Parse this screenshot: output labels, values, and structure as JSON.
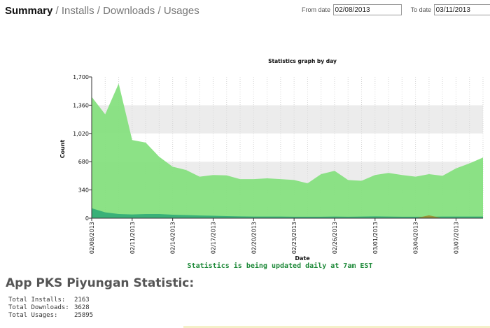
{
  "nav": {
    "summary": "Summary",
    "separator": " / ",
    "installs": "Installs",
    "downloads": "Downloads",
    "usages": "Usages"
  },
  "filters": {
    "from_label": "From date",
    "from_value": "02/08/2013",
    "to_label": "To date",
    "to_value": "03/11/2013"
  },
  "chart_data": {
    "type": "area",
    "title": "Statistics graph by day",
    "xlabel": "Date",
    "ylabel": "Count",
    "ylim": [
      0,
      1700
    ],
    "yticks": [
      0,
      340,
      680,
      1020,
      1360,
      1700
    ],
    "ytick_labels": [
      "0",
      "340",
      "680",
      "1,020",
      "1,360",
      "1,700"
    ],
    "x": [
      "02/08/2013",
      "02/09/2013",
      "02/10/2013",
      "02/11/2013",
      "02/12/2013",
      "02/13/2013",
      "02/14/2013",
      "02/15/2013",
      "02/16/2013",
      "02/17/2013",
      "02/18/2013",
      "02/19/2013",
      "02/20/2013",
      "02/21/2013",
      "02/22/2013",
      "02/23/2013",
      "02/24/2013",
      "02/25/2013",
      "02/26/2013",
      "02/27/2013",
      "02/28/2013",
      "03/01/2013",
      "03/02/2013",
      "03/03/2013",
      "03/04/2013",
      "03/05/2013",
      "03/06/2013",
      "03/07/2013",
      "03/08/2013",
      "03/09/2013"
    ],
    "x_tick_labels": [
      "02/08/2013",
      "02/11/2013",
      "02/14/2013",
      "02/17/2013",
      "02/20/2013",
      "02/23/2013",
      "02/26/2013",
      "03/01/2013",
      "03/04/2013",
      "03/07/2013"
    ],
    "series": [
      {
        "name": "",
        "color": "#86e07f",
        "values": [
          1460,
          1250,
          1620,
          940,
          910,
          740,
          620,
          580,
          500,
          520,
          515,
          470,
          470,
          480,
          470,
          460,
          420,
          530,
          570,
          460,
          450,
          520,
          545,
          520,
          500,
          530,
          510,
          600,
          660,
          730
        ]
      },
      {
        "name": "",
        "color": "#2aa876",
        "values": [
          120,
          70,
          50,
          45,
          50,
          50,
          42,
          38,
          33,
          30,
          25,
          22,
          20,
          20,
          20,
          18,
          18,
          18,
          20,
          18,
          20,
          22,
          20,
          18,
          18,
          18,
          20,
          20,
          20,
          20
        ]
      },
      {
        "name": "",
        "color": "#9c8a2a",
        "values": [
          0,
          0,
          0,
          0,
          0,
          0,
          0,
          0,
          0,
          0,
          0,
          0,
          0,
          0,
          0,
          0,
          0,
          0,
          0,
          0,
          0,
          0,
          0,
          0,
          0,
          35,
          0,
          0,
          0,
          0
        ]
      }
    ],
    "grid": true,
    "legend": "none"
  },
  "note": "Statistics is being updated daily at 7am EST",
  "app": {
    "title": "App PKS Piyungan Statistic:",
    "totals": [
      {
        "label": "Total Installs:",
        "value": "2163"
      },
      {
        "label": "Total Downloads:",
        "value": "3628"
      },
      {
        "label": "Total Usages:",
        "value": "25895"
      }
    ]
  }
}
